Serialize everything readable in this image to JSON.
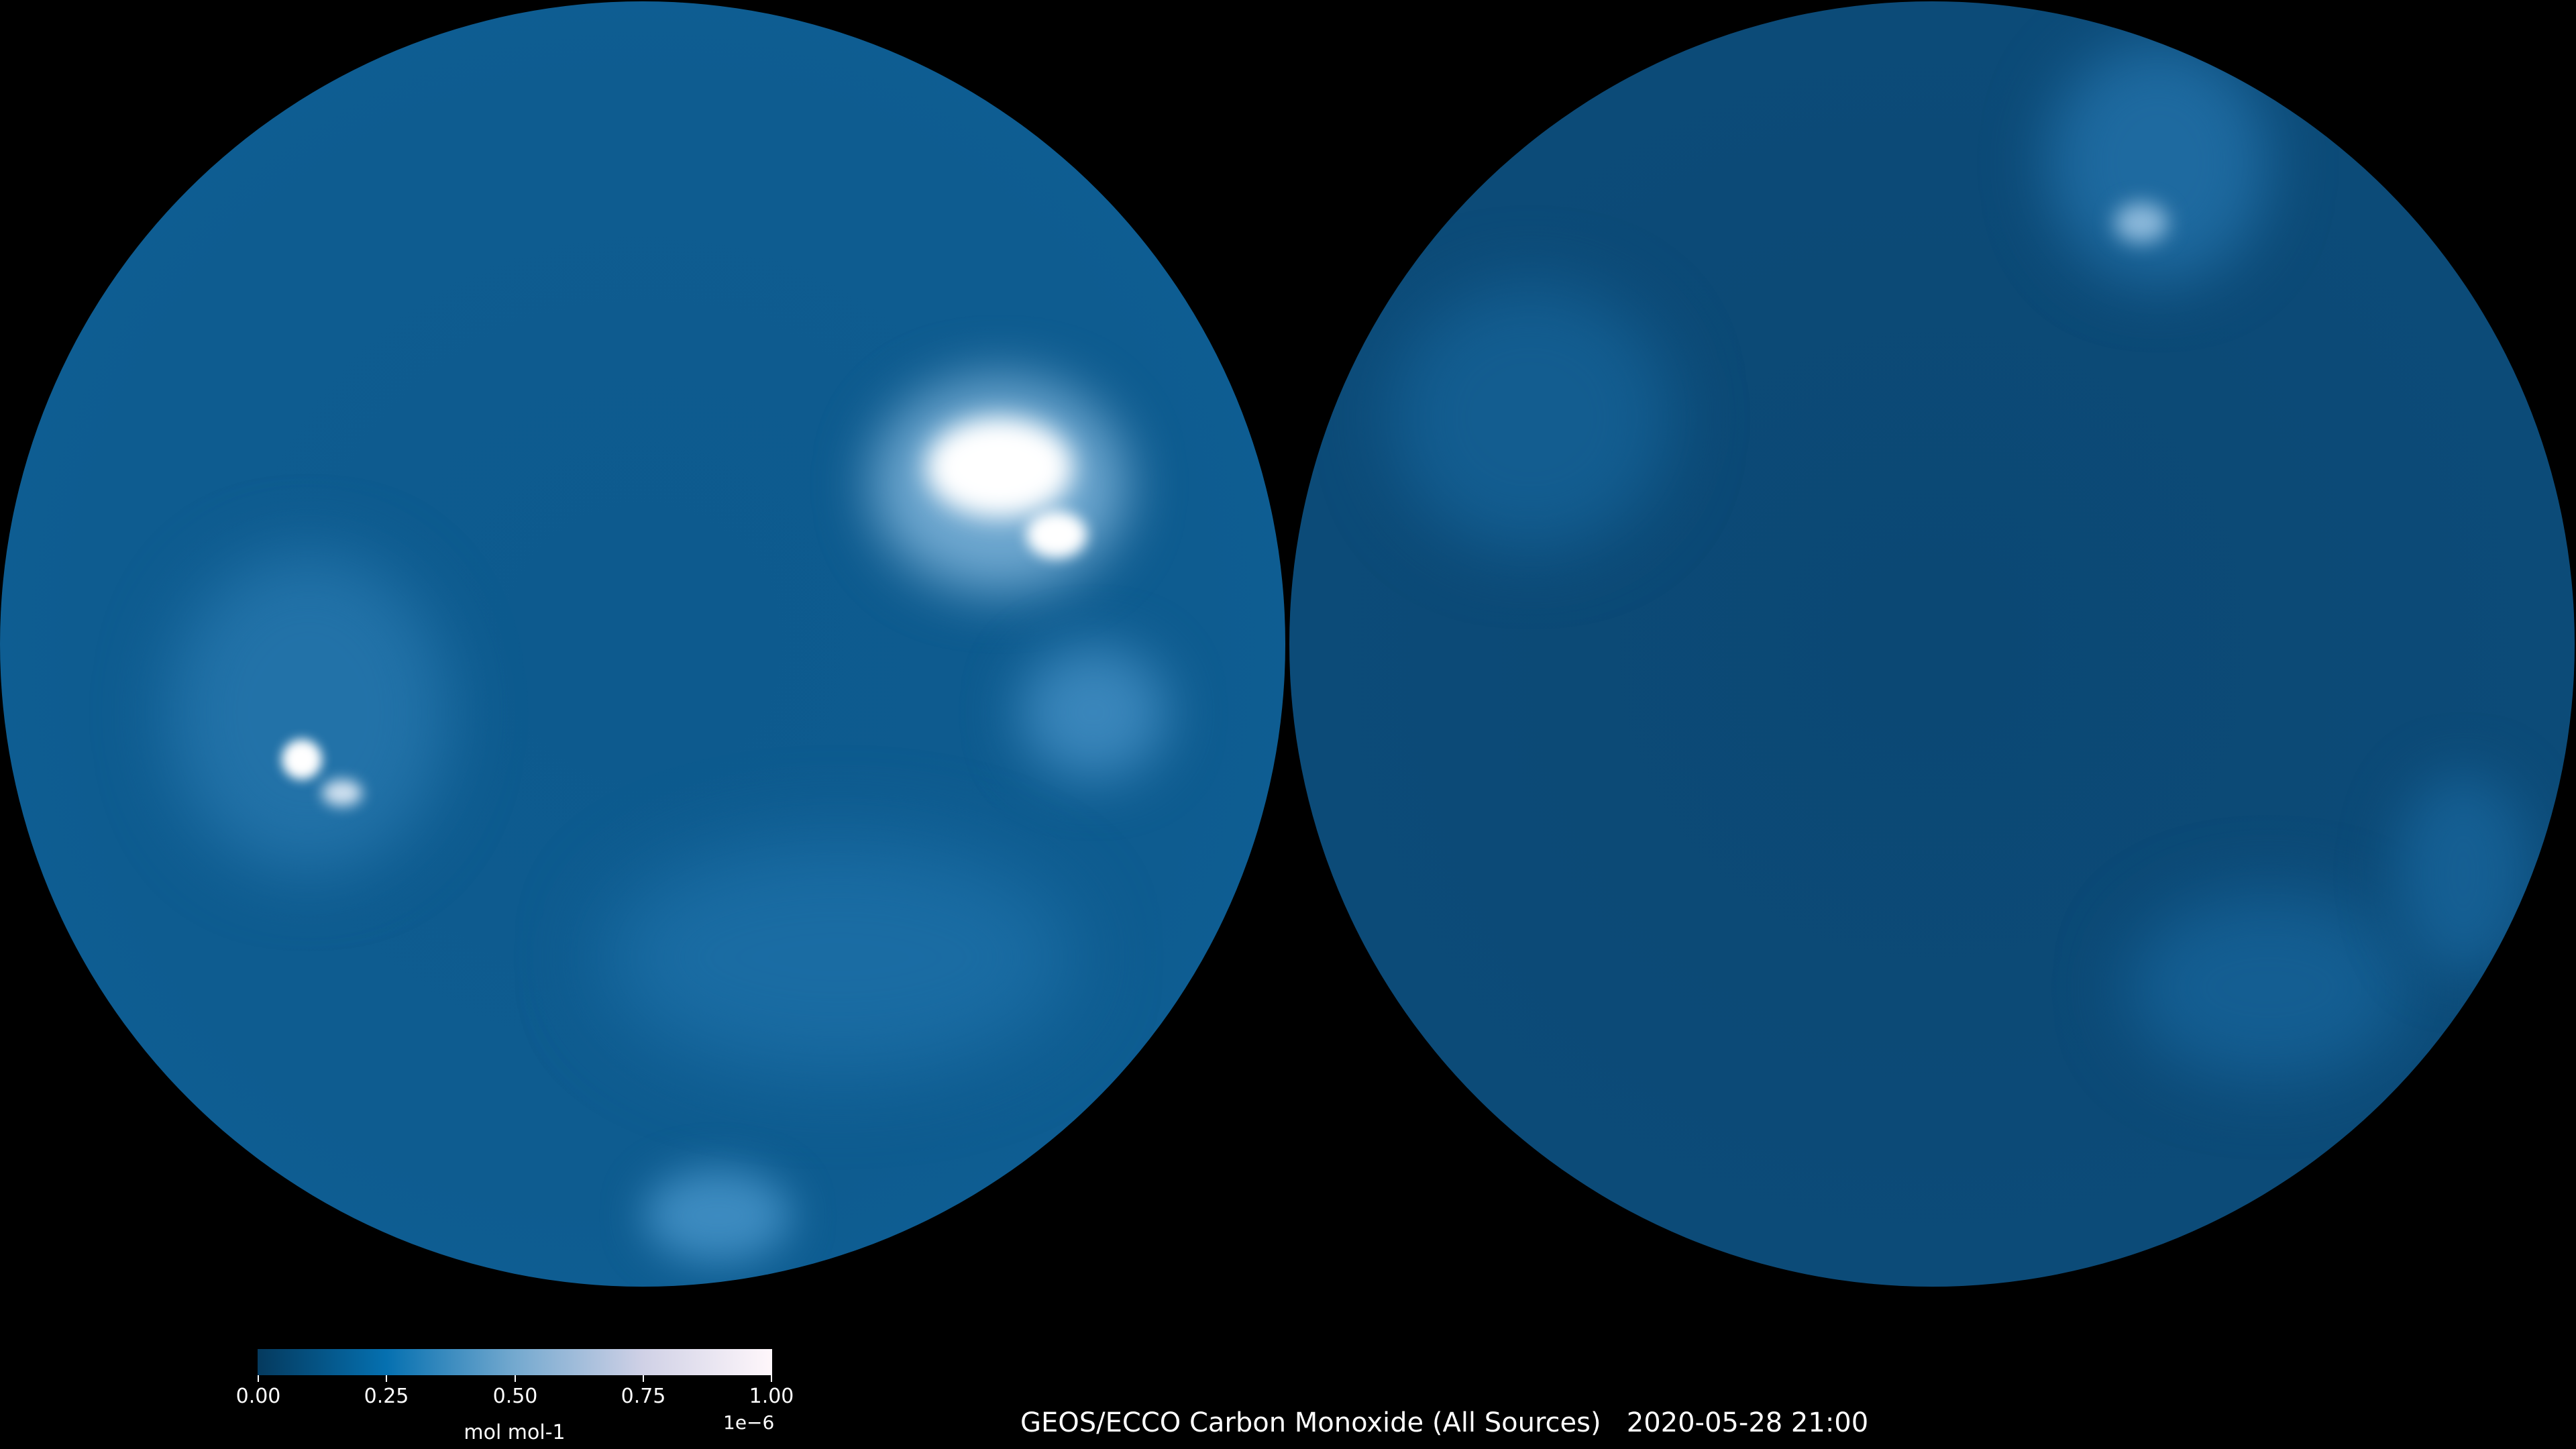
{
  "title": "GEOS/ECCO Carbon Monoxide (All Sources)",
  "timestamp": "2020-05-28 21:00",
  "colorbar": {
    "label": "mol mol-1",
    "exponent": "1e−6",
    "ticks": [
      "0.00",
      "0.25",
      "0.50",
      "0.75",
      "1.00"
    ],
    "range": [
      0,
      1
    ],
    "colors": [
      "#053a5e",
      "#0570b0",
      "#74a9cf",
      "#d0d1e6",
      "#fff7fb"
    ]
  },
  "maps": [
    "left hemisphere",
    "right hemisphere"
  ]
}
